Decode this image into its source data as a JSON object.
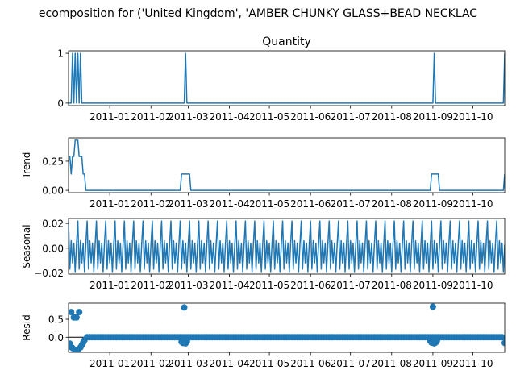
{
  "figure": {
    "suptitle": "ecomposition for ('United Kingdom', 'AMBER CHUNKY GLASS+BEAD NECKLAC"
  },
  "colors": {
    "series": "#1f77b4",
    "axis": "#000000",
    "zero_line": "#000000"
  },
  "chart_data": [
    {
      "type": "line",
      "title": "Quantity",
      "ylabel": "",
      "xlim": [
        "2010-12-01",
        "2011-10-25"
      ],
      "ylim": [
        -0.05,
        1.05
      ],
      "yticks": [
        0,
        1
      ],
      "ytick_labels": [
        "0",
        "1"
      ],
      "xticks": [
        "2011-01-01",
        "2011-02-01",
        "2011-03-01",
        "2011-04-01",
        "2011-05-01",
        "2011-06-01",
        "2011-07-01",
        "2011-08-01",
        "2011-09-01",
        "2011-10-01"
      ],
      "xtick_labels": [
        "2011-01",
        "2011-02",
        "2011-03",
        "2011-04",
        "2011-05",
        "2011-06",
        "2011-07",
        "2011-08",
        "2011-09",
        "2011-10"
      ],
      "series": [
        {
          "points": [
            [
              "2010-12-01",
              0
            ],
            [
              "2010-12-03",
              0
            ],
            [
              "2010-12-04",
              1
            ],
            [
              "2010-12-05",
              0
            ],
            [
              "2010-12-06",
              1
            ],
            [
              "2010-12-07",
              0
            ],
            [
              "2010-12-08",
              1
            ],
            [
              "2010-12-09",
              0
            ],
            [
              "2010-12-10",
              1
            ],
            [
              "2010-12-11",
              0
            ],
            [
              "2011-02-26",
              0
            ],
            [
              "2011-02-27",
              1
            ],
            [
              "2011-02-28",
              0
            ],
            [
              "2011-09-01",
              0
            ],
            [
              "2011-09-02",
              1
            ],
            [
              "2011-09-03",
              0
            ],
            [
              "2011-10-24",
              0
            ],
            [
              "2011-10-25",
              1
            ]
          ]
        }
      ]
    },
    {
      "type": "line",
      "title": "",
      "ylabel": "Trend",
      "xlim": [
        "2010-12-01",
        "2011-10-25"
      ],
      "ylim": [
        -0.02,
        0.45
      ],
      "yticks": [
        0,
        0.25
      ],
      "ytick_labels": [
        "0.00",
        "0.25"
      ],
      "xticks": [
        "2011-01-01",
        "2011-02-01",
        "2011-03-01",
        "2011-04-01",
        "2011-05-01",
        "2011-06-01",
        "2011-07-01",
        "2011-08-01",
        "2011-09-01",
        "2011-10-01"
      ],
      "xtick_labels": [
        "2011-01",
        "2011-02",
        "2011-03",
        "2011-04",
        "2011-05",
        "2011-06",
        "2011-07",
        "2011-08",
        "2011-09",
        "2011-10"
      ],
      "series": [
        {
          "points": [
            [
              "2010-12-01",
              0.29
            ],
            [
              "2010-12-02",
              0.29
            ],
            [
              "2010-12-03",
              0.14
            ],
            [
              "2010-12-04",
              0.29
            ],
            [
              "2010-12-05",
              0.29
            ],
            [
              "2010-12-06",
              0.43
            ],
            [
              "2010-12-07",
              0.43
            ],
            [
              "2010-12-08",
              0.43
            ],
            [
              "2010-12-09",
              0.29
            ],
            [
              "2010-12-10",
              0.29
            ],
            [
              "2010-12-11",
              0.29
            ],
            [
              "2010-12-12",
              0.14
            ],
            [
              "2010-12-13",
              0.14
            ],
            [
              "2010-12-14",
              0
            ],
            [
              "2011-02-23",
              0
            ],
            [
              "2011-02-24",
              0.14
            ],
            [
              "2011-02-28",
              0.14
            ],
            [
              "2011-03-02",
              0.14
            ],
            [
              "2011-03-03",
              0
            ],
            [
              "2011-08-30",
              0
            ],
            [
              "2011-08-31",
              0.14
            ],
            [
              "2011-09-05",
              0.14
            ],
            [
              "2011-09-06",
              0
            ],
            [
              "2011-10-23",
              0
            ],
            [
              "2011-10-24",
              0
            ],
            [
              "2011-10-25",
              0.14
            ]
          ]
        }
      ]
    },
    {
      "type": "line",
      "title": "",
      "ylabel": "Seasonal",
      "xlim": [
        "2010-12-01",
        "2011-10-25"
      ],
      "ylim": [
        -0.021,
        0.024
      ],
      "yticks": [
        0.02,
        0,
        -0.02
      ],
      "ytick_labels": [
        "0.02",
        "0.00",
        "−0.02"
      ],
      "xticks": [
        "2011-01-01",
        "2011-02-01",
        "2011-03-01",
        "2011-04-01",
        "2011-05-01",
        "2011-06-01",
        "2011-07-01",
        "2011-08-01",
        "2011-09-01",
        "2011-10-01"
      ],
      "xtick_labels": [
        "2011-01",
        "2011-02",
        "2011-03",
        "2011-04",
        "2011-05",
        "2011-06",
        "2011-07",
        "2011-08",
        "2011-09",
        "2011-10"
      ],
      "seasonal_period_days": 7,
      "seasonal_pattern": [
        0.022,
        -0.017,
        0.006,
        -0.012,
        0.004,
        -0.019,
        0.003
      ],
      "series": [
        {
          "start": "2010-12-01",
          "end": "2011-10-25"
        }
      ]
    },
    {
      "type": "scatter",
      "title": "",
      "ylabel": "Resid",
      "xlim": [
        "2010-12-01",
        "2011-10-25"
      ],
      "ylim": [
        -0.42,
        0.95
      ],
      "yticks": [
        0.5,
        0
      ],
      "ytick_labels": [
        "0.5",
        "0.0"
      ],
      "zero_line": true,
      "xticks": [
        "2011-01-01",
        "2011-02-01",
        "2011-03-01",
        "2011-04-01",
        "2011-05-01",
        "2011-06-01",
        "2011-07-01",
        "2011-08-01",
        "2011-09-01",
        "2011-10-01"
      ],
      "xtick_labels": [
        "2011-01",
        "2011-02",
        "2011-03",
        "2011-04",
        "2011-05",
        "2011-06",
        "2011-07",
        "2011-08",
        "2011-09",
        "2011-10"
      ],
      "baseline": {
        "start": "2010-12-15",
        "end": "2011-10-24",
        "step_days": 2,
        "value": 0
      },
      "points": [
        [
          "2010-12-01",
          -0.27
        ],
        [
          "2010-12-02",
          -0.18
        ],
        [
          "2010-12-03",
          0.7
        ],
        [
          "2010-12-04",
          -0.3
        ],
        [
          "2010-12-05",
          0.55
        ],
        [
          "2010-12-06",
          -0.38
        ],
        [
          "2010-12-07",
          0.55
        ],
        [
          "2010-12-08",
          -0.35
        ],
        [
          "2010-12-09",
          0.7
        ],
        [
          "2010-12-10",
          -0.28
        ],
        [
          "2010-12-11",
          -0.22
        ],
        [
          "2010-12-12",
          -0.15
        ],
        [
          "2010-12-13",
          -0.08
        ],
        [
          "2011-02-24",
          -0.13
        ],
        [
          "2011-02-25",
          -0.16
        ],
        [
          "2011-02-26",
          0.83
        ],
        [
          "2011-02-27",
          -0.17
        ],
        [
          "2011-02-28",
          -0.12
        ],
        [
          "2011-08-30",
          -0.1
        ],
        [
          "2011-08-31",
          -0.15
        ],
        [
          "2011-09-01",
          0.85
        ],
        [
          "2011-09-02",
          -0.17
        ],
        [
          "2011-09-03",
          -0.15
        ],
        [
          "2011-09-04",
          -0.1
        ],
        [
          "2011-10-25",
          -0.16
        ]
      ]
    }
  ]
}
